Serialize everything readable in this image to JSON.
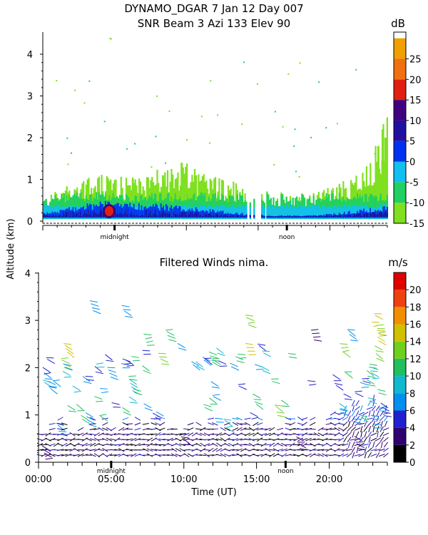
{
  "chart_data": [
    {
      "type": "heatmap",
      "title_line1": "DYNAMO_DGAR    7 Jan 12 Day 007",
      "title_line2": "SNR Beam 3 Azi 133 Elev 90",
      "ylabel": "Altitude (km)",
      "ylim": [
        0,
        4.6
      ],
      "y_ticks": [
        "0",
        "1",
        "2",
        "3",
        "4"
      ],
      "x_markers": [
        "midnight",
        "noon"
      ],
      "xlim_hours": [
        0,
        24
      ],
      "colorbar": {
        "unit": "dB",
        "ticks": [
          "-15",
          "-10",
          "-5",
          "0",
          "5",
          "10",
          "15",
          "20",
          "25"
        ],
        "levels": [
          -15,
          -10,
          -5,
          0,
          5,
          10,
          15,
          20,
          25,
          30
        ],
        "colors": [
          "#7fe020",
          "#20d060",
          "#10c0f0",
          "#0030f0",
          "#2010a0",
          "#400080",
          "#e02010",
          "#f07010",
          "#f0a000"
        ]
      },
      "echo_layer": [
        {
          "hour": 0.0,
          "top_km": 0.5,
          "core_km": 0.1
        },
        {
          "hour": 1.5,
          "top_km": 0.8,
          "core_km": 0.2
        },
        {
          "hour": 3.0,
          "top_km": 0.9,
          "core_km": 0.3
        },
        {
          "hour": 4.5,
          "top_km": 1.0,
          "core_km": 0.35
        },
        {
          "hour": 6.0,
          "top_km": 0.9,
          "core_km": 0.3
        },
        {
          "hour": 8.0,
          "top_km": 1.1,
          "core_km": 0.3
        },
        {
          "hour": 9.5,
          "top_km": 1.3,
          "core_km": 0.25
        },
        {
          "hour": 11.0,
          "top_km": 1.0,
          "core_km": 0.2
        },
        {
          "hour": 12.5,
          "top_km": 0.9,
          "core_km": 0.15
        },
        {
          "hour": 14.0,
          "top_km": 0.8,
          "core_km": 0.1
        },
        {
          "hour": 16.0,
          "top_km": 0.6,
          "core_km": 0.05
        },
        {
          "hour": 18.5,
          "top_km": 0.6,
          "core_km": 0.05
        },
        {
          "hour": 20.5,
          "top_km": 0.8,
          "core_km": 0.1
        },
        {
          "hour": 22.5,
          "top_km": 1.2,
          "core_km": 0.2
        },
        {
          "hour": 23.8,
          "top_km": 2.2,
          "core_km": 0.25
        }
      ]
    },
    {
      "type": "scatter",
      "title": "Filtered Winds nima.",
      "xlabel": "Time (UT)",
      "ylabel": "Altitude (km)",
      "xlim": [
        0,
        24
      ],
      "ylim": [
        0,
        4.1
      ],
      "x_ticks": [
        "00:00",
        "05:00",
        "10:00",
        "15:00",
        "20:00"
      ],
      "y_ticks": [
        "0",
        "1",
        "2",
        "3",
        "4"
      ],
      "x_markers": [
        "midnight",
        "noon"
      ],
      "colorbar": {
        "unit": "m/s",
        "ticks": [
          "0",
          "2",
          "4",
          "6",
          "8",
          "10",
          "12",
          "14",
          "16",
          "18",
          "20"
        ],
        "levels": [
          0,
          2,
          4,
          6,
          8,
          10,
          12,
          14,
          16,
          18,
          20,
          22
        ],
        "colors": [
          "#000000",
          "#300070",
          "#2020d0",
          "#0090f0",
          "#10b8d0",
          "#20c060",
          "#70d020",
          "#d0c000",
          "#f09000",
          "#f04010",
          "#e00000"
        ]
      },
      "wind_barbs": [
        {
          "hour": 0.5,
          "alt_km": 0.3,
          "speed_ms": 3
        },
        {
          "hour": 1.5,
          "alt_km": 0.8,
          "speed_ms": 6
        },
        {
          "hour": 1.8,
          "alt_km": 2.2,
          "speed_ms": 12
        },
        {
          "hour": 2.0,
          "alt_km": 2.5,
          "speed_ms": 14
        },
        {
          "hour": 3.5,
          "alt_km": 1.0,
          "speed_ms": 6
        },
        {
          "hour": 3.8,
          "alt_km": 3.4,
          "speed_ms": 7
        },
        {
          "hour": 5.0,
          "alt_km": 2.0,
          "speed_ms": 7
        },
        {
          "hour": 6.0,
          "alt_km": 3.3,
          "speed_ms": 6
        },
        {
          "hour": 6.5,
          "alt_km": 1.7,
          "speed_ms": 9
        },
        {
          "hour": 7.5,
          "alt_km": 2.7,
          "speed_ms": 10
        },
        {
          "hour": 8.5,
          "alt_km": 2.3,
          "speed_ms": 12
        },
        {
          "hour": 9.0,
          "alt_km": 2.8,
          "speed_ms": 11
        },
        {
          "hour": 10.0,
          "alt_km": 0.6,
          "speed_ms": 3
        },
        {
          "hour": 12.0,
          "alt_km": 2.3,
          "speed_ms": 10
        },
        {
          "hour": 13.0,
          "alt_km": 0.9,
          "speed_ms": 9
        },
        {
          "hour": 14.5,
          "alt_km": 3.1,
          "speed_ms": 13
        },
        {
          "hour": 14.5,
          "alt_km": 2.5,
          "speed_ms": 15
        },
        {
          "hour": 15.0,
          "alt_km": 1.4,
          "speed_ms": 11
        },
        {
          "hour": 16.5,
          "alt_km": 1.2,
          "speed_ms": 12
        },
        {
          "hour": 18.0,
          "alt_km": 0.5,
          "speed_ms": 3
        },
        {
          "hour": 19.0,
          "alt_km": 2.8,
          "speed_ms": 3
        },
        {
          "hour": 20.5,
          "alt_km": 1.8,
          "speed_ms": 4
        },
        {
          "hour": 21.0,
          "alt_km": 2.5,
          "speed_ms": 13
        },
        {
          "hour": 21.5,
          "alt_km": 2.8,
          "speed_ms": 6
        },
        {
          "hour": 22.0,
          "alt_km": 0.5,
          "speed_ms": 2
        },
        {
          "hour": 23.0,
          "alt_km": 2.0,
          "speed_ms": 8
        },
        {
          "hour": 23.5,
          "alt_km": 2.9,
          "speed_ms": 12
        },
        {
          "hour": 23.8,
          "alt_km": 1.2,
          "speed_ms": 5
        }
      ]
    }
  ]
}
